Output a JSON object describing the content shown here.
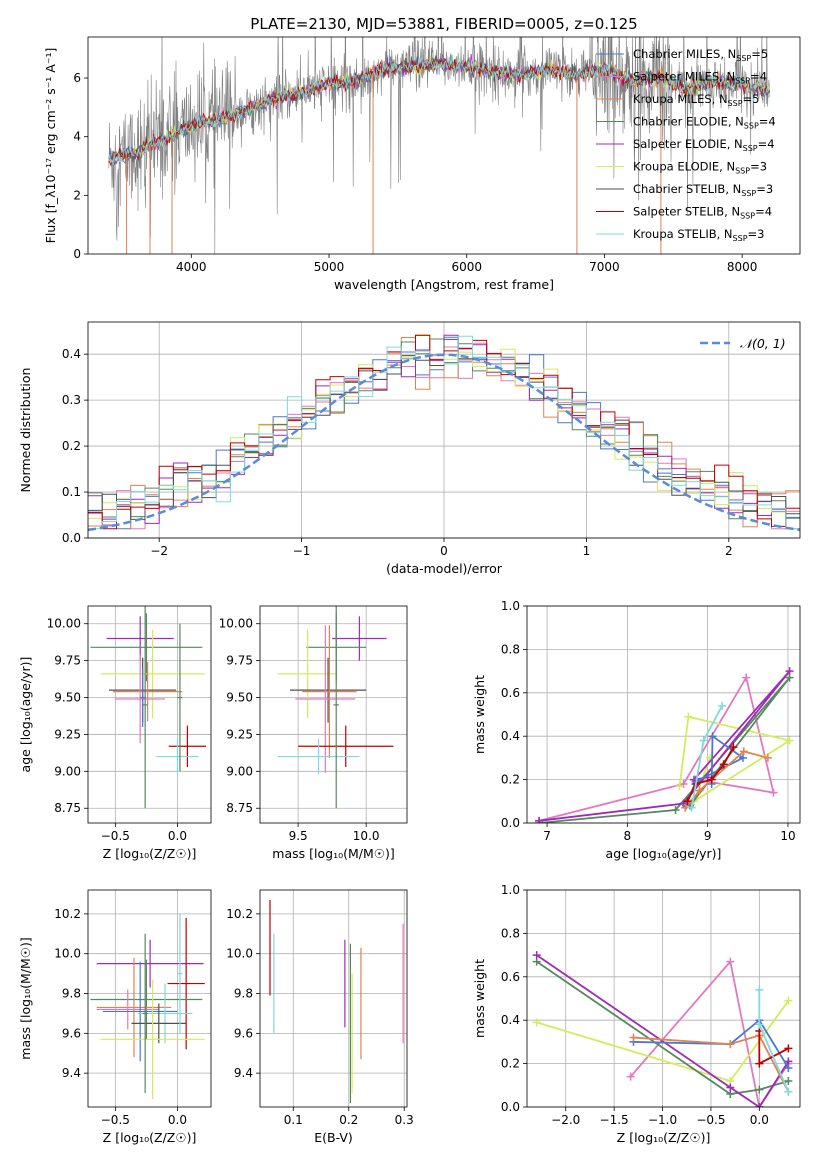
{
  "figure_title": "PLATE=2130, MJD=53881, FIBERID=0005, z=0.125",
  "chart_data": [
    {
      "id": "spectrum",
      "type": "line",
      "xlabel": "wavelength [Angstrom, rest frame]",
      "ylabel": "Flux [f_λ10⁻¹⁷ erg cm⁻² s⁻¹ A⁻¹]",
      "xlim": [
        3250,
        8420
      ],
      "ylim": [
        0,
        7.4
      ],
      "xticks": [
        4000,
        5000,
        6000,
        7000,
        8000
      ],
      "yticks": [
        0,
        2,
        4,
        6
      ],
      "grid": false,
      "legend_position": "top-right",
      "data_color": "#808080",
      "legend": [
        {
          "label": "Chabrier MILES, N_SSP=5",
          "color": "#4878cf"
        },
        {
          "label": "Salpeter MILES, N_SSP=4",
          "color": "#e377c2"
        },
        {
          "label": "Kroupa MILES, N_SSP=5",
          "color": "#dd8452"
        },
        {
          "label": "Chabrier ELODIE, N_SSP=4",
          "color": "#55885f"
        },
        {
          "label": "Salpeter ELODIE, N_SSP=4",
          "color": "#9f2ab8"
        },
        {
          "label": "Kroupa ELODIE, N_SSP=3",
          "color": "#d4ec5a"
        },
        {
          "label": "Chabrier STELIB, N_SSP=3",
          "color": "#505050"
        },
        {
          "label": "Salpeter STELIB, N_SSP=4",
          "color": "#c00000"
        },
        {
          "label": "Kroupa STELIB, N_SSP=3",
          "color": "#80d8e0"
        }
      ],
      "continuum": {
        "x": [
          3400,
          3600,
          3800,
          4000,
          4200,
          4400,
          4600,
          4800,
          5000,
          5200,
          5400,
          5600,
          5800,
          6000,
          6200,
          6400,
          6600,
          6800,
          7000,
          7200,
          7400,
          7600,
          7800,
          8000,
          8200
        ],
        "y": [
          3.2,
          3.5,
          3.9,
          4.4,
          4.6,
          4.9,
          5.3,
          5.5,
          5.8,
          5.9,
          6.3,
          6.4,
          6.5,
          6.4,
          6.2,
          6.1,
          6.3,
          6.1,
          6.3,
          5.9,
          6.0,
          5.6,
          5.9,
          5.8,
          5.5
        ]
      }
    },
    {
      "id": "residuals",
      "type": "histogram",
      "xlabel": "(data-model)/error",
      "ylabel": "Normed distribution",
      "xlim": [
        -2.5,
        2.5
      ],
      "ylim": [
        0,
        0.47
      ],
      "xticks": [
        -2,
        -1,
        0,
        1,
        2
      ],
      "yticks": [
        0,
        0.1,
        0.2,
        0.3,
        0.4
      ],
      "grid": true,
      "legend_position": "top-right",
      "reference_curve": {
        "label": "𝒩(0, 1)",
        "color": "#5b8bd8",
        "style": "dashed"
      },
      "bin_width": 0.1,
      "bin_start": -2.5
    },
    {
      "id": "age_vs_Z",
      "type": "errorbar",
      "xlabel": "Z [log₁₀(Z/Z☉)]",
      "ylabel": "age  [log₁₀(age/yr)]",
      "xlim": [
        -0.72,
        0.27
      ],
      "ylim": [
        8.65,
        10.12
      ],
      "xticks": [
        -0.5,
        0.0
      ],
      "yticks": [
        8.75,
        9.0,
        9.25,
        9.5,
        9.75,
        10.0
      ],
      "grid": true,
      "points": [
        {
          "x": -0.3,
          "y": 9.9,
          "xerr": 0.27,
          "yerr": 0.15,
          "color": "#9f2ab8"
        },
        {
          "x": -0.25,
          "y": 9.84,
          "xerr": 0.45,
          "yerr": 0.23,
          "color": "#55885f"
        },
        {
          "x": -0.2,
          "y": 9.66,
          "xerr": 0.42,
          "yerr": 0.3,
          "color": "#d4ec5a"
        },
        {
          "x": -0.28,
          "y": 9.55,
          "xerr": 0.27,
          "yerr": 0.22,
          "color": "#505050"
        },
        {
          "x": -0.24,
          "y": 9.54,
          "xerr": 0.28,
          "yerr": 0.2,
          "color": "#dd8452"
        },
        {
          "x": -0.3,
          "y": 9.49,
          "xerr": 0.2,
          "yerr": 0.3,
          "color": "#e377c2"
        },
        {
          "x": 0.08,
          "y": 9.17,
          "xerr": 0.15,
          "yerr": 0.14,
          "color": "#c00000"
        },
        {
          "x": 0.0,
          "y": 9.1,
          "xerr": 0.17,
          "yerr": 0.12,
          "color": "#80d8e0"
        },
        {
          "x": -0.26,
          "y": 9.45,
          "xerr": 0.02,
          "yerr": 0.7,
          "color": "#55885f"
        },
        {
          "x": -0.28,
          "y": 9.5,
          "xerr": 0.02,
          "yerr": 0.2,
          "color": "#4878cf"
        },
        {
          "x": 0.02,
          "y": 9.5,
          "xerr": 0.02,
          "yerr": 0.5,
          "color": "#55885f"
        }
      ]
    },
    {
      "id": "age_vs_mass",
      "type": "errorbar",
      "xlabel": "mass [log₁₀(M/M☉)]",
      "ylabel": "",
      "xlim": [
        9.22,
        10.3
      ],
      "ylim": [
        8.65,
        10.12
      ],
      "xticks": [
        9.5,
        10.0
      ],
      "yticks": [
        8.75,
        9.0,
        9.25,
        9.5,
        9.75,
        10.0
      ],
      "grid": true,
      "points": [
        {
          "x": 9.95,
          "y": 9.9,
          "xerr": 0.2,
          "yerr": 0.15,
          "color": "#9f2ab8"
        },
        {
          "x": 9.78,
          "y": 9.84,
          "xerr": 0.22,
          "yerr": 0.23,
          "color": "#55885f"
        },
        {
          "x": 9.57,
          "y": 9.66,
          "xerr": 0.22,
          "yerr": 0.3,
          "color": "#d4ec5a"
        },
        {
          "x": 9.72,
          "y": 9.55,
          "xerr": 0.28,
          "yerr": 0.22,
          "color": "#505050"
        },
        {
          "x": 9.73,
          "y": 9.54,
          "xerr": 0.2,
          "yerr": 0.45,
          "color": "#dd8452"
        },
        {
          "x": 9.7,
          "y": 9.49,
          "xerr": 0.22,
          "yerr": 0.5,
          "color": "#e377c2"
        },
        {
          "x": 9.85,
          "y": 9.17,
          "xerr": 0.35,
          "yerr": 0.14,
          "color": "#c00000"
        },
        {
          "x": 9.65,
          "y": 9.1,
          "xerr": 0.3,
          "yerr": 0.12,
          "color": "#80d8e0"
        },
        {
          "x": 9.78,
          "y": 9.45,
          "xerr": 0.02,
          "yerr": 0.7,
          "color": "#55885f"
        }
      ]
    },
    {
      "id": "weight_vs_age",
      "type": "line",
      "xlabel": "age  [log₁₀(age/yr)]",
      "ylabel": "mass weight",
      "xlim": [
        6.75,
        10.15
      ],
      "ylim": [
        0,
        1.0
      ],
      "xticks": [
        7,
        8,
        9,
        10
      ],
      "yticks": [
        0.0,
        0.2,
        0.4,
        0.6,
        0.8,
        1.0
      ],
      "grid": true,
      "series": [
        {
          "color": "#e377c2",
          "x": [
            6.9,
            8.7,
            9.48,
            9.82,
            8.85
          ],
          "y": [
            0.01,
            0.18,
            0.67,
            0.14,
            0.2
          ]
        },
        {
          "color": "#d4ec5a",
          "x": [
            8.65,
            8.76,
            10.02,
            8.83,
            9.03
          ],
          "y": [
            0.17,
            0.49,
            0.38,
            0.1,
            0.3
          ]
        },
        {
          "color": "#55885f",
          "x": [
            6.9,
            8.6,
            10.02,
            8.78
          ],
          "y": [
            0.0,
            0.06,
            0.67,
            0.08
          ]
        },
        {
          "color": "#9f2ab8",
          "x": [
            6.9,
            8.7,
            10.02,
            8.83,
            9.0
          ],
          "y": [
            0.01,
            0.09,
            0.7,
            0.2,
            0.21
          ]
        },
        {
          "color": "#4878cf",
          "x": [
            8.73,
            8.85,
            9.44,
            9.06,
            9.05
          ],
          "y": [
            0.08,
            0.19,
            0.3,
            0.4,
            0.18
          ]
        },
        {
          "color": "#dd8452",
          "x": [
            8.72,
            8.9,
            9.45,
            9.75
          ],
          "y": [
            0.07,
            0.15,
            0.33,
            0.3
          ]
        },
        {
          "color": "#c00000",
          "x": [
            8.75,
            8.85,
            9.05,
            9.2,
            9.32
          ],
          "y": [
            0.1,
            0.18,
            0.2,
            0.27,
            0.35
          ]
        },
        {
          "color": "#80d8e0",
          "x": [
            8.8,
            8.95,
            9.18
          ],
          "y": [
            0.07,
            0.38,
            0.54
          ]
        }
      ]
    },
    {
      "id": "mass_vs_Z",
      "type": "errorbar",
      "xlabel": "Z [log₁₀(Z/Z☉)]",
      "ylabel": "mass [log₁₀(M/M☉)]",
      "xlim": [
        -0.72,
        0.27
      ],
      "ylim": [
        9.23,
        10.32
      ],
      "xticks": [
        -0.5,
        0.0
      ],
      "yticks": [
        9.4,
        9.6,
        9.8,
        10.0,
        10.2
      ],
      "grid": true,
      "points": [
        {
          "x": -0.22,
          "y": 9.95,
          "xerr": 0.43,
          "yerr": 0.12,
          "color": "#9f2ab8"
        },
        {
          "x": 0.07,
          "y": 9.85,
          "xerr": 0.15,
          "yerr": 0.33,
          "color": "#c00000"
        },
        {
          "x": -0.25,
          "y": 9.77,
          "xerr": 0.45,
          "yerr": 0.2,
          "color": "#55885f"
        },
        {
          "x": -0.35,
          "y": 9.73,
          "xerr": 0.3,
          "yerr": 0.25,
          "color": "#dd8452"
        },
        {
          "x": -0.4,
          "y": 9.72,
          "xerr": 0.25,
          "yerr": 0.1,
          "color": "#e377c2"
        },
        {
          "x": -0.3,
          "y": 9.71,
          "xerr": 0.3,
          "yerr": 0.25,
          "color": "#4878cf"
        },
        {
          "x": -0.1,
          "y": 9.7,
          "xerr": 0.22,
          "yerr": 0.15,
          "color": "#80d8e0"
        },
        {
          "x": -0.15,
          "y": 9.65,
          "xerr": 0.22,
          "yerr": 0.1,
          "color": "#505050"
        },
        {
          "x": -0.2,
          "y": 9.57,
          "xerr": 0.42,
          "yerr": 0.3,
          "color": "#d4ec5a"
        },
        {
          "x": 0.02,
          "y": 9.9,
          "xerr": 0.02,
          "yerr": 0.3,
          "color": "#80d8e0"
        },
        {
          "x": -0.26,
          "y": 9.7,
          "xerr": 0.02,
          "yerr": 0.4,
          "color": "#55885f"
        }
      ]
    },
    {
      "id": "mass_vs_ebv",
      "type": "errorbar",
      "xlabel": "E(B-V)",
      "ylabel": "",
      "xlim": [
        0.04,
        0.305
      ],
      "ylim": [
        9.23,
        10.32
      ],
      "xticks": [
        0.1,
        0.2,
        0.3
      ],
      "yticks": [
        9.4,
        9.6,
        9.8,
        10.0,
        10.2
      ],
      "grid": true,
      "points": [
        {
          "x": 0.058,
          "y": 10.03,
          "xerr": 0,
          "yerr": 0.24,
          "color": "#c00000"
        },
        {
          "x": 0.065,
          "y": 9.85,
          "xerr": 0,
          "yerr": 0.25,
          "color": "#80d8e0"
        },
        {
          "x": 0.193,
          "y": 9.85,
          "xerr": 0,
          "yerr": 0.22,
          "color": "#9f2ab8"
        },
        {
          "x": 0.203,
          "y": 9.65,
          "xerr": 0,
          "yerr": 0.4,
          "color": "#55885f"
        },
        {
          "x": 0.206,
          "y": 9.6,
          "xerr": 0,
          "yerr": 0.3,
          "color": "#d4ec5a"
        },
        {
          "x": 0.222,
          "y": 9.75,
          "xerr": 0,
          "yerr": 0.28,
          "color": "#dd8452"
        },
        {
          "x": 0.298,
          "y": 9.85,
          "xerr": 0,
          "yerr": 0.3,
          "color": "#e377c2"
        }
      ]
    },
    {
      "id": "weight_vs_Z",
      "type": "line",
      "xlabel": "Z [log₁₀(Z/Z☉)]",
      "ylabel": "mass weight",
      "xlim": [
        -2.4,
        0.42
      ],
      "ylim": [
        0,
        1.0
      ],
      "xticks": [
        -2.0,
        -1.5,
        -1.0,
        -0.5,
        0.0
      ],
      "yticks": [
        0.0,
        0.2,
        0.4,
        0.6,
        0.8,
        1.0
      ],
      "grid": true,
      "series": [
        {
          "color": "#e377c2",
          "x": [
            -1.33,
            -0.3,
            0.0,
            0.3
          ],
          "y": [
            0.14,
            0.67,
            0.0,
            0.2
          ]
        },
        {
          "color": "#d4ec5a",
          "x": [
            -2.3,
            -0.3,
            0.3
          ],
          "y": [
            0.39,
            0.12,
            0.49
          ]
        },
        {
          "color": "#55885f",
          "x": [
            -2.3,
            -0.3,
            0.0,
            0.3
          ],
          "y": [
            0.67,
            0.06,
            0.08,
            0.12
          ]
        },
        {
          "color": "#9f2ab8",
          "x": [
            -2.3,
            -0.3,
            0.0,
            0.3
          ],
          "y": [
            0.7,
            0.09,
            0.0,
            0.21
          ]
        },
        {
          "color": "#4878cf",
          "x": [
            -1.3,
            -0.3,
            0.0,
            0.3
          ],
          "y": [
            0.3,
            0.29,
            0.4,
            0.18
          ]
        },
        {
          "color": "#dd8452",
          "x": [
            -1.3,
            -0.3,
            0.0,
            0.3
          ],
          "y": [
            0.32,
            0.29,
            0.33,
            0.07
          ]
        },
        {
          "color": "#c00000",
          "x": [
            0.0,
            0.0,
            0.3
          ],
          "y": [
            0.35,
            0.2,
            0.27
          ]
        },
        {
          "color": "#80d8e0",
          "x": [
            0.0,
            0.0,
            0.3
          ],
          "y": [
            0.54,
            0.38,
            0.07
          ]
        }
      ]
    }
  ]
}
